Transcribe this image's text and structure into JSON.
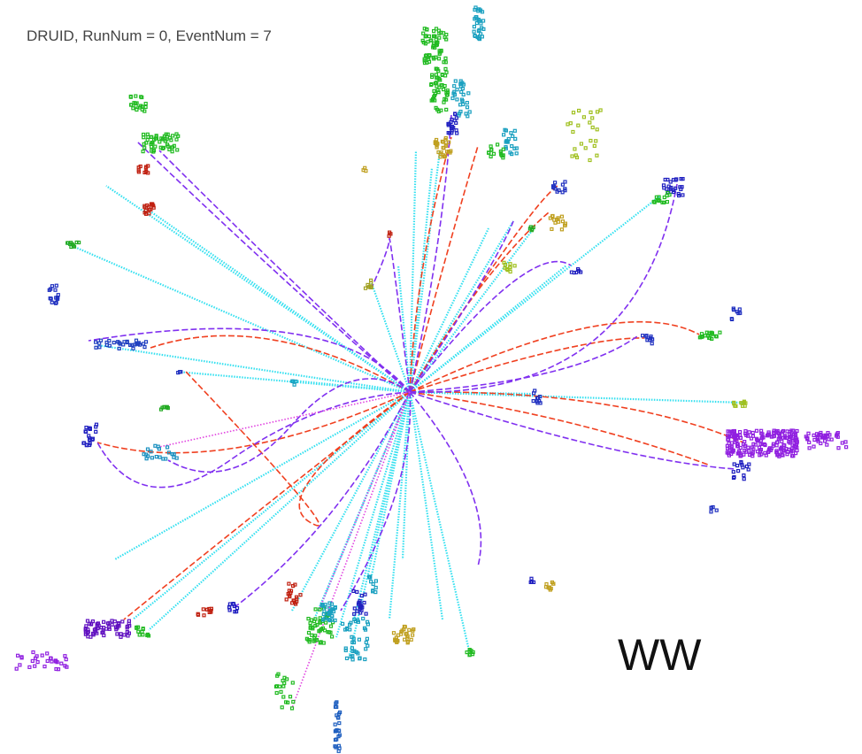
{
  "header": {
    "title": "DRUID, RunNum = 0, EventNum = 7"
  },
  "event_label": "WW"
}
